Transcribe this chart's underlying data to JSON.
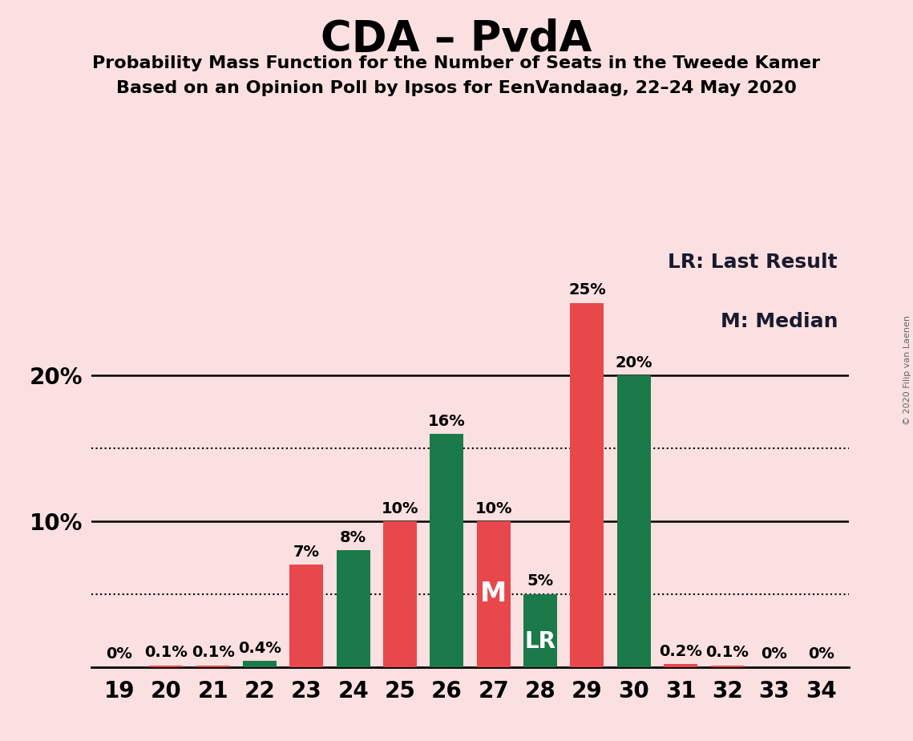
{
  "title": "CDA – PvdA",
  "subtitle1": "Probability Mass Function for the Number of Seats in the Tweede Kamer",
  "subtitle2": "Based on an Opinion Poll by Ipsos for EenVandaag, 22–24 May 2020",
  "copyright": "© 2020 Filip van Laenen",
  "seats": [
    19,
    20,
    21,
    22,
    23,
    24,
    25,
    26,
    27,
    28,
    29,
    30,
    31,
    32,
    33,
    34
  ],
  "values": [
    0.0,
    0.1,
    0.1,
    0.4,
    7.0,
    8.0,
    10.0,
    16.0,
    10.0,
    5.0,
    25.0,
    20.0,
    0.2,
    0.1,
    0.0,
    0.0
  ],
  "colors": [
    "#E8474C",
    "#E8474C",
    "#E8474C",
    "#1A7A4A",
    "#E8474C",
    "#1A7A4A",
    "#E8474C",
    "#1A7A4A",
    "#E8474C",
    "#1A7A4A",
    "#E8474C",
    "#1A7A4A",
    "#E8474C",
    "#E8474C",
    "#E8474C",
    "#E8474C"
  ],
  "labels": [
    "0%",
    "0.1%",
    "0.1%",
    "0.4%",
    "7%",
    "8%",
    "10%",
    "16%",
    "10%",
    "5%",
    "25%",
    "20%",
    "0.2%",
    "0.1%",
    "0%",
    "0%"
  ],
  "median_seat": 27,
  "lr_seat": 28,
  "background_color": "#FAE0E0",
  "bar_color_red": "#E8474C",
  "bar_color_green": "#1A7A4A",
  "legend_lr": "LR: Last Result",
  "legend_m": "M: Median",
  "dotted_lines": [
    5.0,
    15.0
  ],
  "solid_lines": [
    10.0,
    20.0
  ],
  "ylim": [
    0,
    29
  ],
  "title_fontsize": 38,
  "subtitle_fontsize": 16,
  "tick_fontsize": 20,
  "label_fontsize": 14,
  "legend_fontsize": 18
}
